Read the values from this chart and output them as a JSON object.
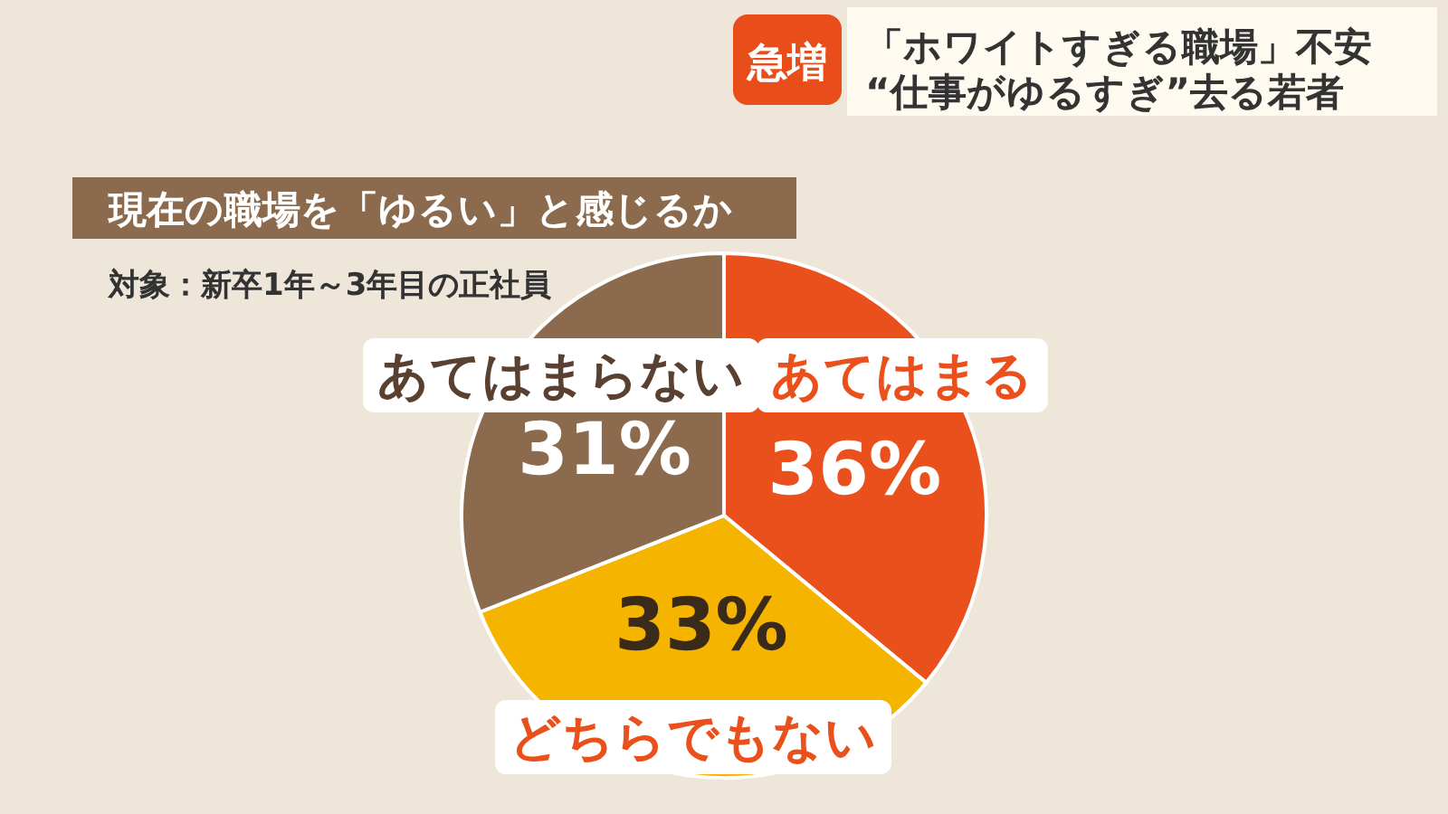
{
  "chart_data": {
    "type": "pie",
    "title": "現在の職場を「ゆるい」と感じるか",
    "subtitle": "対象：新卒1年～3年目の正社員",
    "categories": [
      "あてはまる",
      "どちらでもない",
      "あてはまらない"
    ],
    "values": [
      36,
      33,
      31
    ],
    "colors": [
      "#e9501c",
      "#f4b400",
      "#8b6a4e"
    ],
    "value_labels": [
      "36%",
      "33%",
      "31%"
    ],
    "annotations": [
      "急増",
      "「ホワイトすぎる職場」不安",
      "“仕事がゆるすぎ”去る若者"
    ]
  }
}
